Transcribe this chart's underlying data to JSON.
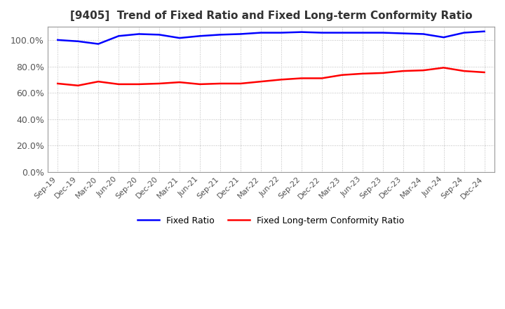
{
  "title": "[9405]  Trend of Fixed Ratio and Fixed Long-term Conformity Ratio",
  "title_fontsize": 11,
  "x_labels": [
    "Sep-19",
    "Dec-19",
    "Mar-20",
    "Jun-20",
    "Sep-20",
    "Dec-20",
    "Mar-21",
    "Jun-21",
    "Sep-21",
    "Dec-21",
    "Mar-22",
    "Jun-22",
    "Sep-22",
    "Dec-22",
    "Mar-23",
    "Jun-23",
    "Sep-23",
    "Dec-23",
    "Mar-24",
    "Jun-24",
    "Sep-24",
    "Dec-24"
  ],
  "fixed_ratio": [
    100.0,
    99.0,
    97.0,
    103.0,
    104.5,
    104.0,
    101.5,
    103.0,
    104.0,
    104.5,
    105.5,
    105.5,
    106.0,
    105.5,
    105.5,
    105.5,
    105.5,
    105.0,
    104.5,
    102.0,
    105.5,
    106.5
  ],
  "fixed_lt_ratio": [
    67.0,
    65.5,
    68.5,
    66.5,
    66.5,
    67.0,
    68.0,
    66.5,
    67.0,
    67.0,
    68.5,
    70.0,
    71.0,
    71.0,
    73.5,
    74.5,
    75.0,
    76.5,
    77.0,
    79.0,
    76.5,
    75.5
  ],
  "fixed_ratio_color": "#0000ff",
  "fixed_lt_ratio_color": "#ff0000",
  "ylim": [
    0,
    110
  ],
  "yticks": [
    0,
    20,
    40,
    60,
    80,
    100
  ],
  "background_color": "#ffffff",
  "grid_color": "#bbbbbb",
  "legend_fixed": "Fixed Ratio",
  "legend_fixed_lt": "Fixed Long-term Conformity Ratio"
}
